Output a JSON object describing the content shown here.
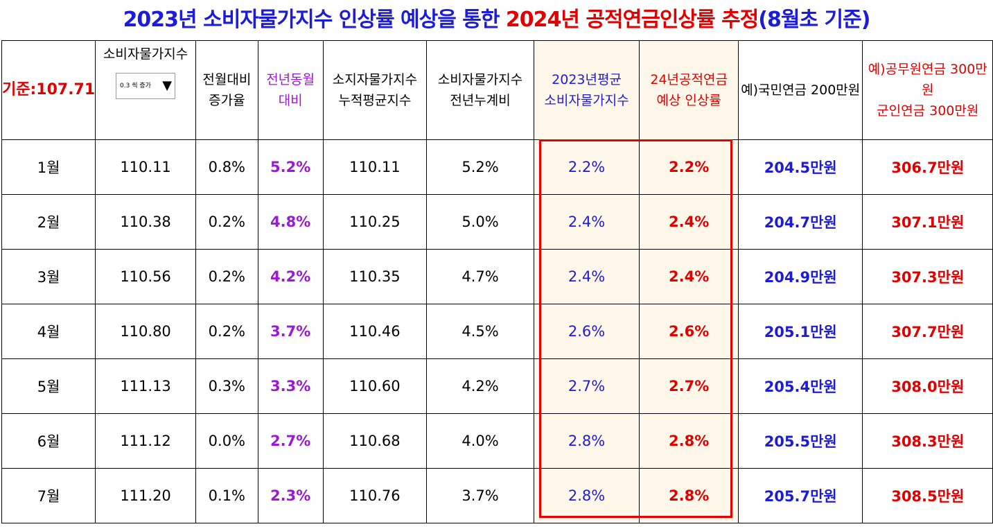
{
  "title": {
    "part1": "2023년 소비자물가지수 인상률 예상을 통한 ",
    "part2": "2024년 공적연금인상률 추정",
    "part3": "(8월초 기준)"
  },
  "headers": {
    "base": "기준:107.71",
    "cpi_line1": "소비자물가지수",
    "dropdown_value": "0.3 씩 증가",
    "mom_line1": "전월대비",
    "mom_line2": "증가율",
    "yoy_line1": "전년동월",
    "yoy_line2": "대비",
    "cum_line1": "소지자물가지수",
    "cum_line2": "누적평균지수",
    "cumyoy_line1": "소비자물가지수",
    "cumyoy_line2": "전년누계비",
    "avg_line1": "2023년평균",
    "avg_line2": "소비자물가지수",
    "est_line1": "24년공적연금",
    "est_line2": "예상 인상률",
    "npension": "예)국민연금 200만원",
    "gpension_line1": "예)공무원연금 300만원",
    "gpension_line2": "군인연금 300만원"
  },
  "rows": [
    {
      "month": "1월",
      "cpi": "110.11",
      "mom": "0.8%",
      "yoy": "5.2%",
      "cum": "110.11",
      "cumyoy": "5.2%",
      "avg": "2.2%",
      "est": "2.2%",
      "npension": "204.5만원",
      "gpension": "306.7만원"
    },
    {
      "month": "2월",
      "cpi": "110.38",
      "mom": "0.2%",
      "yoy": "4.8%",
      "cum": "110.25",
      "cumyoy": "5.0%",
      "avg": "2.4%",
      "est": "2.4%",
      "npension": "204.7만원",
      "gpension": "307.1만원"
    },
    {
      "month": "3월",
      "cpi": "110.56",
      "mom": "0.2%",
      "yoy": "4.2%",
      "cum": "110.35",
      "cumyoy": "4.7%",
      "avg": "2.4%",
      "est": "2.4%",
      "npension": "204.9만원",
      "gpension": "307.3만원"
    },
    {
      "month": "4월",
      "cpi": "110.80",
      "mom": "0.2%",
      "yoy": "3.7%",
      "cum": "110.46",
      "cumyoy": "4.5%",
      "avg": "2.6%",
      "est": "2.6%",
      "npension": "205.1만원",
      "gpension": "307.7만원"
    },
    {
      "month": "5월",
      "cpi": "111.13",
      "mom": "0.3%",
      "yoy": "3.3%",
      "cum": "110.60",
      "cumyoy": "4.2%",
      "avg": "2.7%",
      "est": "2.7%",
      "npension": "205.4만원",
      "gpension": "308.0만원"
    },
    {
      "month": "6월",
      "cpi": "111.12",
      "mom": "0.0%",
      "yoy": "2.7%",
      "cum": "110.68",
      "cumyoy": "4.0%",
      "avg": "2.8%",
      "est": "2.8%",
      "npension": "205.5만원",
      "gpension": "308.3만원"
    },
    {
      "month": "7월",
      "cpi": "111.20",
      "mom": "0.1%",
      "yoy": "2.3%",
      "cum": "110.76",
      "cumyoy": "3.7%",
      "avg": "2.8%",
      "est": "2.8%",
      "npension": "205.7만원",
      "gpension": "308.5만원"
    }
  ],
  "colors": {
    "title_blue": "#1c1cd6",
    "title_red": "#e00000",
    "yoy_purple": "#9b19d4",
    "highlight_border": "#e60000",
    "highlight_fill": "#fff8ea"
  },
  "icons": {
    "dropdown_arrow": "triangle-down-icon"
  }
}
